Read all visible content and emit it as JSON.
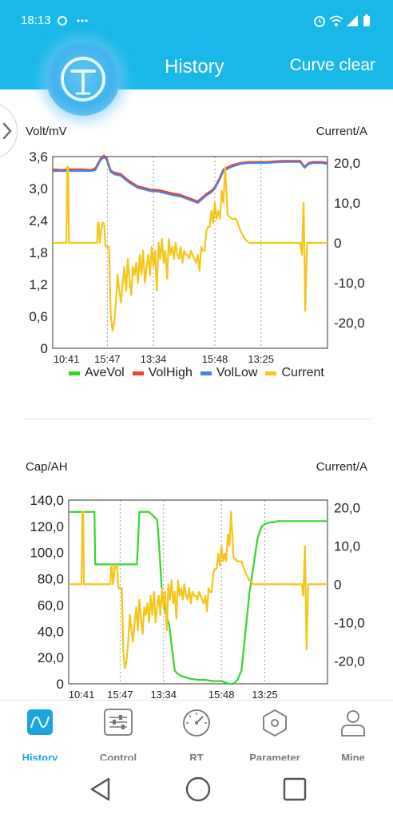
{
  "status_bar": {
    "time": "18:13",
    "icons": [
      "alarm-icon",
      "wifi-icon",
      "signal-icon",
      "battery-icon"
    ]
  },
  "header": {
    "title": "History",
    "action_label": "Curve clear"
  },
  "legend": [
    {
      "name": "AveVol",
      "color": "#32d62a"
    },
    {
      "name": "VolHigh",
      "color": "#e8452c"
    },
    {
      "name": "VolLow",
      "color": "#4f7fe0"
    },
    {
      "name": "Current",
      "color": "#f5c518"
    }
  ],
  "chart_data": [
    {
      "type": "line",
      "ylabel_left": "Volt/mV",
      "ylabel_right": "Current/A",
      "x_ticks": [
        "10:41",
        "15:47",
        "13:34",
        "15:48",
        "13:25"
      ],
      "y_left_ticks": [
        "0",
        "0,6",
        "1,2",
        "1,8",
        "2,4",
        "3,0",
        "3,6"
      ],
      "y_left_range": [
        0,
        3.6
      ],
      "y_right_ticks": [
        "-20,0",
        "-10,0",
        "0",
        "10,0",
        "20,0"
      ],
      "y_right_range": [
        -26.4,
        21.6
      ],
      "grid": "vertical dashed",
      "legend_placement": "bottom",
      "series": [
        {
          "name": "VolHigh",
          "axis": "left",
          "color": "#e8452c",
          "x": [
            0,
            10,
            20,
            35,
            45,
            50,
            56,
            60,
            63,
            68,
            72,
            80,
            85,
            90,
            100,
            106,
            115,
            125,
            135,
            140,
            150,
            160,
            170,
            180,
            186,
            190,
            195,
            200,
            210,
            220,
            230,
            250,
            260,
            270,
            280,
            290,
            295,
            300,
            305,
            310,
            315,
            322
          ],
          "values": [
            3.36,
            3.35,
            3.36,
            3.36,
            3.35,
            3.38,
            3.56,
            3.62,
            3.58,
            3.34,
            3.3,
            3.27,
            3.2,
            3.14,
            3.04,
            3.02,
            2.98,
            2.97,
            2.93,
            2.91,
            2.88,
            2.82,
            2.76,
            2.9,
            2.96,
            3.03,
            3.18,
            3.36,
            3.44,
            3.48,
            3.5,
            3.5,
            3.51,
            3.52,
            3.52,
            3.52,
            3.41,
            3.48,
            3.5,
            3.5,
            3.5,
            3.48
          ]
        },
        {
          "name": "VolLow",
          "axis": "left",
          "color": "#4f7fe0",
          "x": [
            0,
            10,
            20,
            35,
            45,
            50,
            56,
            60,
            63,
            68,
            72,
            80,
            85,
            90,
            100,
            106,
            115,
            125,
            135,
            140,
            150,
            160,
            170,
            180,
            186,
            190,
            195,
            200,
            210,
            220,
            230,
            250,
            260,
            270,
            280,
            290,
            295,
            300,
            305,
            310,
            315,
            322
          ],
          "values": [
            3.33,
            3.33,
            3.33,
            3.33,
            3.33,
            3.35,
            3.53,
            3.59,
            3.55,
            3.31,
            3.27,
            3.24,
            3.17,
            3.11,
            3.01,
            2.99,
            2.95,
            2.94,
            2.9,
            2.88,
            2.85,
            2.79,
            2.73,
            2.87,
            2.93,
            3.0,
            3.15,
            3.33,
            3.41,
            3.46,
            3.48,
            3.48,
            3.49,
            3.5,
            3.5,
            3.5,
            3.39,
            3.46,
            3.48,
            3.48,
            3.48,
            3.46
          ]
        },
        {
          "name": "Current",
          "axis": "right",
          "color": "#f5c518",
          "x": [
            0,
            5,
            10,
            15,
            16,
            17,
            18,
            19,
            20,
            25,
            30,
            35,
            40,
            45,
            50,
            52,
            53,
            54,
            55,
            58,
            60,
            62,
            64,
            66,
            68,
            70,
            72,
            74,
            76,
            78,
            80,
            82,
            84,
            86,
            88,
            90,
            92,
            94,
            96,
            98,
            100,
            102,
            104,
            106,
            108,
            110,
            112,
            114,
            116,
            118,
            120,
            122,
            124,
            126,
            128,
            130,
            132,
            134,
            136,
            138,
            140,
            142,
            144,
            146,
            148,
            150,
            152,
            154,
            156,
            158,
            160,
            162,
            164,
            166,
            168,
            170,
            172,
            174,
            176,
            178,
            180,
            182,
            184,
            186,
            188,
            190,
            192,
            194,
            196,
            198,
            200,
            202,
            205,
            210,
            215,
            220,
            225,
            230,
            235,
            240,
            245,
            250,
            255,
            260,
            265,
            270,
            275,
            280,
            285,
            290,
            292,
            294,
            296,
            298,
            300,
            302,
            305,
            310,
            315,
            318,
            322
          ],
          "values": [
            0,
            0,
            0,
            0,
            0,
            19,
            19,
            0,
            0,
            0,
            0,
            0,
            0,
            0,
            0,
            0,
            5,
            5,
            0,
            5,
            5,
            -1,
            -1,
            -1,
            -18,
            -22,
            -20,
            -15,
            -8,
            -12,
            -15,
            -10,
            -6,
            -12,
            -4,
            -9,
            -13,
            -6,
            -8,
            -5,
            -10,
            -3,
            -8,
            -2,
            -10,
            -6,
            -3,
            -8,
            -1,
            -6,
            -2,
            -12,
            0,
            -4,
            1,
            -5,
            -2,
            -9,
            1,
            -3,
            -1,
            -4,
            0,
            -3,
            -4,
            -1,
            -5,
            -2,
            -3,
            -3,
            -4,
            -2,
            -3,
            -4,
            -5,
            -3,
            -7,
            -1,
            -2,
            -2,
            3,
            4,
            4,
            8,
            5,
            10,
            6,
            8,
            6,
            13,
            10,
            19,
            7,
            6,
            6,
            3,
            1,
            0,
            0,
            0,
            0,
            0,
            0,
            0,
            0,
            0,
            0,
            0,
            0,
            0,
            -3,
            10,
            -17,
            0,
            0,
            0,
            0,
            0,
            0,
            0,
            0
          ]
        }
      ]
    },
    {
      "type": "line",
      "ylabel_left": "Cap/AH",
      "ylabel_right": "Current/A",
      "x_ticks": [
        "10:41",
        "15:47",
        "13:34",
        "15:48",
        "13:25"
      ],
      "y_left_ticks": [
        "0",
        "20,0",
        "40,0",
        "60,0",
        "80,0",
        "100,0",
        "120,0",
        "140,0"
      ],
      "y_left_range": [
        0,
        140
      ],
      "y_right_ticks": [
        "-20,0",
        "-10,0",
        "0",
        "10,0",
        "20,0"
      ],
      "y_right_range": [
        -26,
        22
      ],
      "grid": "vertical dashed",
      "series": [
        {
          "name": "AveVol",
          "axis": "left",
          "color": "#32d62a",
          "x": [
            0,
            15,
            32,
            33,
            34,
            40,
            50,
            55,
            80,
            85,
            88,
            90,
            95,
            100,
            105,
            110,
            112,
            114,
            116,
            120,
            125,
            128,
            130,
            132,
            135,
            140,
            150,
            160,
            170,
            180,
            190,
            195,
            200,
            205,
            210,
            215,
            220,
            225,
            230,
            235,
            240,
            245,
            250,
            255,
            260,
            265,
            270,
            280,
            290,
            300,
            310,
            322
          ],
          "values": [
            131,
            131,
            131,
            91,
            91,
            91,
            91,
            91,
            91,
            91,
            131,
            131,
            131,
            131,
            128,
            125,
            110,
            90,
            70,
            55,
            45,
            30,
            20,
            10,
            8,
            6,
            4,
            3,
            3,
            2,
            2,
            1,
            0,
            0,
            3,
            10,
            40,
            70,
            90,
            111,
            120,
            122,
            123,
            123,
            124,
            124,
            124,
            124,
            124,
            124,
            124,
            124
          ]
        },
        {
          "name": "Current",
          "axis": "right",
          "color": "#f5c518",
          "x": [
            0,
            5,
            10,
            15,
            16,
            17,
            18,
            19,
            20,
            25,
            30,
            35,
            40,
            45,
            50,
            52,
            53,
            54,
            55,
            58,
            60,
            62,
            64,
            66,
            68,
            70,
            72,
            74,
            76,
            78,
            80,
            82,
            84,
            86,
            88,
            90,
            92,
            94,
            96,
            98,
            100,
            102,
            104,
            106,
            108,
            110,
            112,
            114,
            116,
            118,
            120,
            122,
            124,
            126,
            128,
            130,
            132,
            134,
            136,
            138,
            140,
            142,
            144,
            146,
            148,
            150,
            152,
            154,
            156,
            158,
            160,
            162,
            164,
            166,
            168,
            170,
            172,
            174,
            176,
            178,
            180,
            182,
            184,
            186,
            188,
            190,
            192,
            194,
            196,
            198,
            200,
            202,
            205,
            210,
            215,
            220,
            225,
            230,
            235,
            240,
            245,
            250,
            255,
            260,
            265,
            270,
            275,
            280,
            285,
            290,
            292,
            294,
            296,
            298,
            300,
            302,
            305,
            310,
            315,
            318,
            322
          ],
          "values": [
            0,
            0,
            0,
            0,
            0,
            19,
            19,
            0,
            0,
            0,
            0,
            0,
            0,
            0,
            0,
            0,
            5,
            5,
            0,
            5,
            5,
            -1,
            -1,
            -1,
            -18,
            -22,
            -20,
            -15,
            -8,
            -12,
            -15,
            -10,
            -6,
            -12,
            -4,
            -9,
            -13,
            -6,
            -8,
            -5,
            -10,
            -3,
            -8,
            -2,
            -10,
            -6,
            -3,
            -8,
            -1,
            -6,
            -2,
            -12,
            0,
            -4,
            1,
            -5,
            -2,
            -9,
            1,
            -3,
            -1,
            -4,
            0,
            -3,
            -4,
            -1,
            -5,
            -2,
            -3,
            -3,
            -4,
            -2,
            -3,
            -4,
            -5,
            -3,
            -7,
            -1,
            -2,
            -2,
            3,
            4,
            4,
            8,
            5,
            10,
            6,
            8,
            6,
            13,
            10,
            19,
            7,
            6,
            6,
            3,
            1,
            0,
            0,
            0,
            0,
            0,
            0,
            0,
            0,
            0,
            0,
            0,
            0,
            0,
            -3,
            10,
            -17,
            0,
            0,
            0,
            0,
            0,
            0,
            0,
            0
          ]
        }
      ]
    }
  ],
  "bottom_nav": [
    {
      "label": "History",
      "icon": "history-icon",
      "active": true
    },
    {
      "label": "Control",
      "icon": "control-icon",
      "active": false
    },
    {
      "label": "RT",
      "icon": "gauge-icon",
      "active": false
    },
    {
      "label": "Parameter",
      "icon": "parameter-icon",
      "active": false
    },
    {
      "label": "Mine",
      "icon": "user-icon",
      "active": false
    }
  ],
  "system_nav": [
    "back-icon",
    "home-icon",
    "recents-icon"
  ],
  "colors": {
    "header": "#19b8e8",
    "accent": "#1aa6dc"
  }
}
